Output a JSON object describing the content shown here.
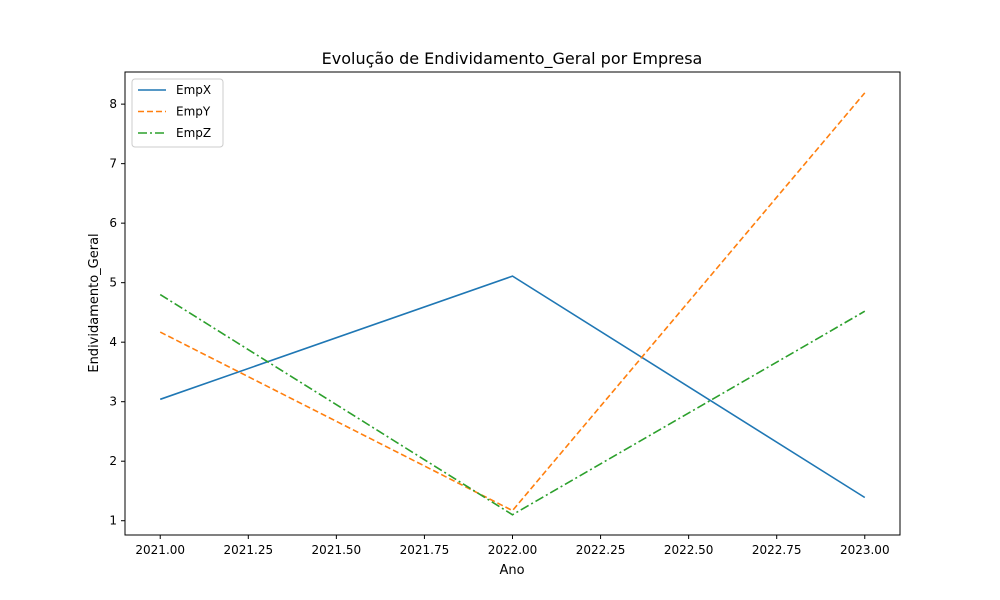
{
  "chart_data": {
    "type": "line",
    "title": "Evolução de Endividamento_Geral por Empresa",
    "xlabel": "Ano",
    "ylabel": "Endividamento_Geral",
    "x": [
      2021,
      2022,
      2023
    ],
    "xlim": [
      2020.9,
      2023.1
    ],
    "ylim": [
      0.76,
      8.54
    ],
    "xticks": [
      2021.0,
      2021.25,
      2021.5,
      2021.75,
      2022.0,
      2022.25,
      2022.5,
      2022.75,
      2023.0
    ],
    "xtick_labels": [
      "2021.00",
      "2021.25",
      "2021.50",
      "2021.75",
      "2022.00",
      "2022.25",
      "2022.50",
      "2022.75",
      "2023.00"
    ],
    "yticks": [
      1,
      2,
      3,
      4,
      5,
      6,
      7,
      8
    ],
    "ytick_labels": [
      "1",
      "2",
      "3",
      "4",
      "5",
      "6",
      "7",
      "8"
    ],
    "grid": false,
    "legend_position": "upper-left",
    "series": [
      {
        "name": "EmpX",
        "values": [
          3.04,
          5.11,
          1.39
        ],
        "color": "#1f77b4",
        "style": "solid"
      },
      {
        "name": "EmpY",
        "values": [
          4.17,
          1.17,
          8.19
        ],
        "color": "#ff7f0e",
        "style": "dashed"
      },
      {
        "name": "EmpZ",
        "values": [
          4.8,
          1.1,
          4.52
        ],
        "color": "#2ca02c",
        "style": "dashdot"
      }
    ]
  }
}
